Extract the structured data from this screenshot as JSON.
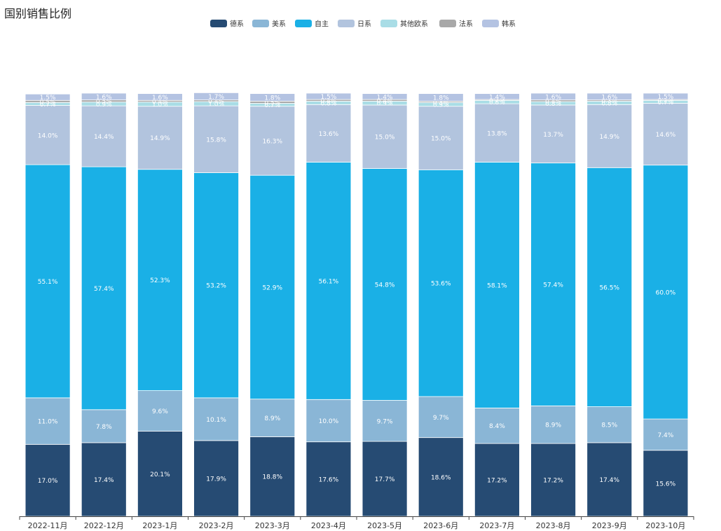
{
  "chart_data": {
    "type": "bar",
    "stacked": true,
    "title": "国别销售比例",
    "xlabel": "",
    "ylabel": "",
    "ylim": [
      0,
      100
    ],
    "legend_position": "top-center",
    "categories": [
      "2022-11月",
      "2022-12月",
      "2023-1月",
      "2023-2月",
      "2023-3月",
      "2023-4月",
      "2023-5月",
      "2023-6月",
      "2023-7月",
      "2023-8月",
      "2023-9月",
      "2023-10月"
    ],
    "series": [
      {
        "name": "德系",
        "color": "#264b73",
        "values": [
          17.0,
          17.4,
          20.1,
          17.9,
          18.8,
          17.6,
          17.7,
          18.6,
          17.2,
          17.2,
          17.4,
          15.6
        ]
      },
      {
        "name": "美系",
        "color": "#8ab6d6",
        "values": [
          11.0,
          7.8,
          9.6,
          10.1,
          8.9,
          10.0,
          9.7,
          9.7,
          8.4,
          8.9,
          8.5,
          7.4
        ]
      },
      {
        "name": "自主",
        "color": "#1ab0e6",
        "values": [
          55.1,
          57.4,
          52.3,
          53.2,
          52.9,
          56.1,
          54.8,
          53.6,
          58.1,
          57.4,
          56.5,
          60.0
        ]
      },
      {
        "name": "日系",
        "color": "#b2c4de",
        "values": [
          14.0,
          14.4,
          14.9,
          15.8,
          16.3,
          13.6,
          15.0,
          15.0,
          13.8,
          13.7,
          14.9,
          14.6
        ]
      },
      {
        "name": "其他欧系",
        "color": "#a9dde6",
        "values": [
          0.7,
          0.9,
          1.0,
          1.0,
          0.7,
          0.8,
          0.9,
          0.9,
          0.8,
          0.8,
          0.8,
          0.7
        ]
      },
      {
        "name": "法系",
        "color": "#a8a8a8",
        "values": [
          0.5,
          0.5,
          0.4,
          0.4,
          0.5,
          0.4,
          0.4,
          0.3,
          0.2,
          0.4,
          0.3,
          0.2
        ]
      },
      {
        "name": "韩系",
        "color": "#b4c3e2",
        "values": [
          1.5,
          1.6,
          1.6,
          1.7,
          1.8,
          1.5,
          1.4,
          1.8,
          1.4,
          1.6,
          1.6,
          1.5
        ]
      }
    ]
  }
}
